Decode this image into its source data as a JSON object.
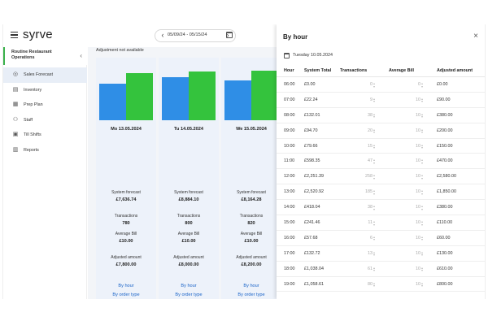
{
  "app": {
    "logo": "syrve"
  },
  "date_range": {
    "label": "05/09/24 - 05/15/24",
    "prev": "‹",
    "next": "›"
  },
  "sidebar": {
    "org_name": "Routine Restaurant Operations",
    "collapse": "‹",
    "items": [
      {
        "label": "Sales Forecast",
        "icon": "globe-icon",
        "glyph": "◎",
        "active": true
      },
      {
        "label": "Inventory",
        "icon": "inventory-icon",
        "glyph": "▤"
      },
      {
        "label": "Prep Plan",
        "icon": "prep-plan-icon",
        "glyph": "▦"
      },
      {
        "label": "Staff",
        "icon": "staff-icon",
        "glyph": "⚇"
      },
      {
        "label": "Till Shifts",
        "icon": "till-shifts-icon",
        "glyph": "▣"
      },
      {
        "label": "Reports",
        "icon": "reports-icon",
        "glyph": "▥"
      }
    ]
  },
  "main": {
    "adjustment_note": "Adjustment not available",
    "labels": {
      "system_forecast": "System forecast",
      "transactions": "Transactions",
      "average_bill": "Average Bill",
      "adjusted_amount": "Adjusted amount",
      "by_hour": "By hour",
      "by_order_type": "By order type"
    },
    "days": [
      {
        "day": "Mo 13.05.2024",
        "forecast": "£7,636.74",
        "transactions": "780",
        "avg_bill": "£10.00",
        "adjusted": "£7,800.00",
        "forecast_value": 7636.74,
        "adjusted_value": 7800
      },
      {
        "day": "Tu 14.05.2024",
        "forecast": "£8,884.10",
        "transactions": "800",
        "avg_bill": "£10.00",
        "adjusted": "£8,000.00",
        "forecast_value": 8884.1,
        "adjusted_value": 8000
      },
      {
        "day": "We 15.05.2024",
        "forecast": "£8,164.28",
        "transactions": "820",
        "avg_bill": "£10.00",
        "adjusted": "£8,200.00",
        "forecast_value": 8164.28,
        "adjusted_value": 8200
      }
    ],
    "colors": {
      "forecast": "#2f8ee6",
      "adjusted": "#34c33d"
    }
  },
  "panel": {
    "title": "By hour",
    "close": "×",
    "date": "Tuesday 10.05.2024",
    "headers": {
      "hour": "Hour",
      "total": "System Total",
      "transactions": "Transactions",
      "bill": "Average Bill",
      "adjusted": "Adjusted amount"
    },
    "rows": [
      {
        "hour": "06:00",
        "total": "£0.00",
        "transactions": "0",
        "bill": "0",
        "adjusted": "£0.00"
      },
      {
        "hour": "07:00",
        "total": "£22.24",
        "transactions": "9",
        "bill": "10",
        "adjusted": "£90.00"
      },
      {
        "hour": "08:00",
        "total": "£132.01",
        "transactions": "38",
        "bill": "10",
        "adjusted": "£380.00"
      },
      {
        "hour": "09:00",
        "total": "£94.70",
        "transactions": "20",
        "bill": "10",
        "adjusted": "£200.00"
      },
      {
        "hour": "10:00",
        "total": "£79.66",
        "transactions": "15",
        "bill": "10",
        "adjusted": "£150.00"
      },
      {
        "hour": "11:00",
        "total": "£598.35",
        "transactions": "47",
        "bill": "10",
        "adjusted": "£470.00"
      },
      {
        "hour": "12:00",
        "total": "£2,251.39",
        "transactions": "258",
        "bill": "10",
        "adjusted": "£2,580.00"
      },
      {
        "hour": "13:00",
        "total": "£2,520.92",
        "transactions": "185",
        "bill": "10",
        "adjusted": "£1,850.00"
      },
      {
        "hour": "14:00",
        "total": "£418.04",
        "transactions": "38",
        "bill": "10",
        "adjusted": "£380.00"
      },
      {
        "hour": "15:00",
        "total": "£241.46",
        "transactions": "11",
        "bill": "10",
        "adjusted": "£110.00"
      },
      {
        "hour": "16:00",
        "total": "£57.68",
        "transactions": "6",
        "bill": "10",
        "adjusted": "£60.00"
      },
      {
        "hour": "17:00",
        "total": "£132.72",
        "transactions": "13",
        "bill": "10",
        "adjusted": "£130.00"
      },
      {
        "hour": "18:00",
        "total": "£1,038.04",
        "transactions": "61",
        "bill": "10",
        "adjusted": "£610.00"
      },
      {
        "hour": "19:00",
        "total": "£1,058.61",
        "transactions": "80",
        "bill": "10",
        "adjusted": "£800.00"
      }
    ]
  }
}
